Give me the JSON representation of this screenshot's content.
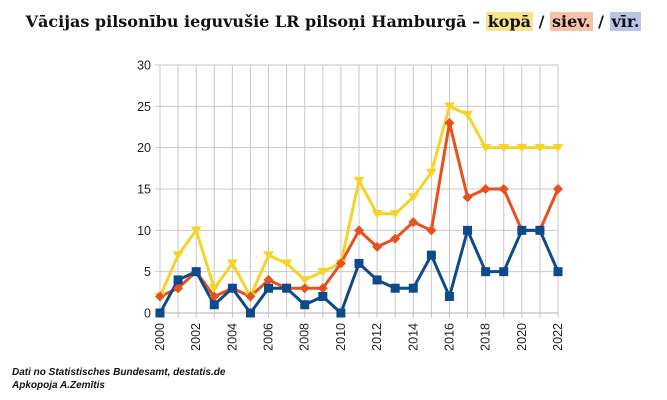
{
  "header": {
    "title_main": "Vācijas pilsonību ieguvušie LR pilsoņi Hamburgā –",
    "title_kopa": "kopā",
    "title_sep1": " / ",
    "title_siev": "siev.",
    "title_sep2": " / ",
    "title_vir": "vīr.",
    "highlight_colors": {
      "kopa": "#f6e58d",
      "siev": "#f8c1a8",
      "vir": "#b7c6e6"
    }
  },
  "source": {
    "line1": "Dati no Statistisches Bundesamt, destatis.de",
    "line2": "Apkopoja A.Zemītis"
  },
  "chart_data": {
    "type": "line",
    "x": [
      2000,
      2001,
      2002,
      2003,
      2004,
      2005,
      2006,
      2007,
      2008,
      2009,
      2010,
      2011,
      2012,
      2013,
      2014,
      2015,
      2016,
      2017,
      2018,
      2019,
      2020,
      2021,
      2022
    ],
    "x_tick_labels": [
      "2000",
      "2002",
      "2004",
      "2006",
      "2008",
      "2010",
      "2012",
      "2014",
      "2016",
      "2018",
      "2020",
      "2022"
    ],
    "y_ticks": [
      0,
      5,
      10,
      15,
      20,
      25,
      30
    ],
    "ylim": [
      0,
      30
    ],
    "xlim": [
      2000,
      2022
    ],
    "grid": true,
    "series": [
      {
        "name": "kopā",
        "color": "#f5d327",
        "marker": "triangle-down",
        "values": [
          2,
          7,
          10,
          3,
          6,
          2,
          7,
          6,
          4,
          5,
          6,
          16,
          12,
          12,
          14,
          17,
          25,
          24,
          20,
          20,
          20,
          20,
          20
        ]
      },
      {
        "name": "siev.",
        "color": "#e8501e",
        "marker": "diamond",
        "values": [
          2,
          3,
          5,
          2,
          3,
          2,
          4,
          3,
          3,
          3,
          6,
          10,
          8,
          9,
          11,
          10,
          23,
          14,
          15,
          15,
          10,
          10,
          15
        ]
      },
      {
        "name": "vīr.",
        "color": "#0d4a8b",
        "marker": "square",
        "values": [
          0,
          4,
          5,
          1,
          3,
          0,
          3,
          3,
          1,
          2,
          0,
          6,
          4,
          3,
          3,
          7,
          2,
          10,
          5,
          5,
          10,
          10,
          5
        ]
      }
    ]
  }
}
